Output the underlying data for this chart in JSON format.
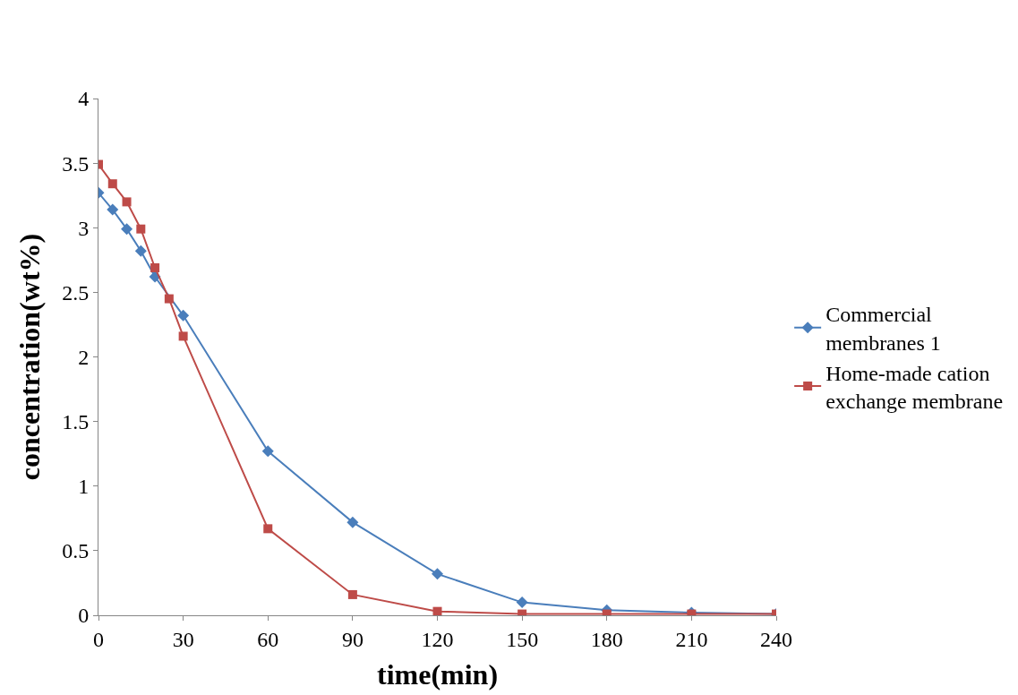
{
  "chart_data": {
    "type": "line",
    "xlabel": "time(min)",
    "ylabel": "concentration(wt%)",
    "xlim": [
      0,
      240
    ],
    "xticks": [
      0,
      30,
      60,
      90,
      120,
      150,
      180,
      210,
      240
    ],
    "ylim": [
      0,
      4
    ],
    "yticks": [
      0,
      0.5,
      1,
      1.5,
      2,
      2.5,
      3,
      3.5,
      4
    ],
    "legend": "right",
    "series": [
      {
        "name": "Commercial membranes 1",
        "color": "#4a7ebb",
        "marker": "diamond",
        "x": [
          0,
          5,
          10,
          15,
          20,
          30,
          60,
          90,
          120,
          150,
          180,
          210,
          240
        ],
        "values": [
          3.27,
          3.14,
          2.99,
          2.82,
          2.62,
          2.32,
          1.27,
          0.72,
          0.32,
          0.1,
          0.04,
          0.02,
          0.01
        ]
      },
      {
        "name": "Home-made cation exchange membrane",
        "color": "#be4b48",
        "marker": "square",
        "x": [
          0,
          5,
          10,
          15,
          20,
          25,
          30,
          60,
          90,
          120,
          150,
          180,
          210,
          240
        ],
        "values": [
          3.49,
          3.34,
          3.2,
          2.99,
          2.69,
          2.45,
          2.16,
          0.67,
          0.16,
          0.03,
          0.01,
          0.01,
          0.01,
          0.01
        ]
      }
    ]
  }
}
